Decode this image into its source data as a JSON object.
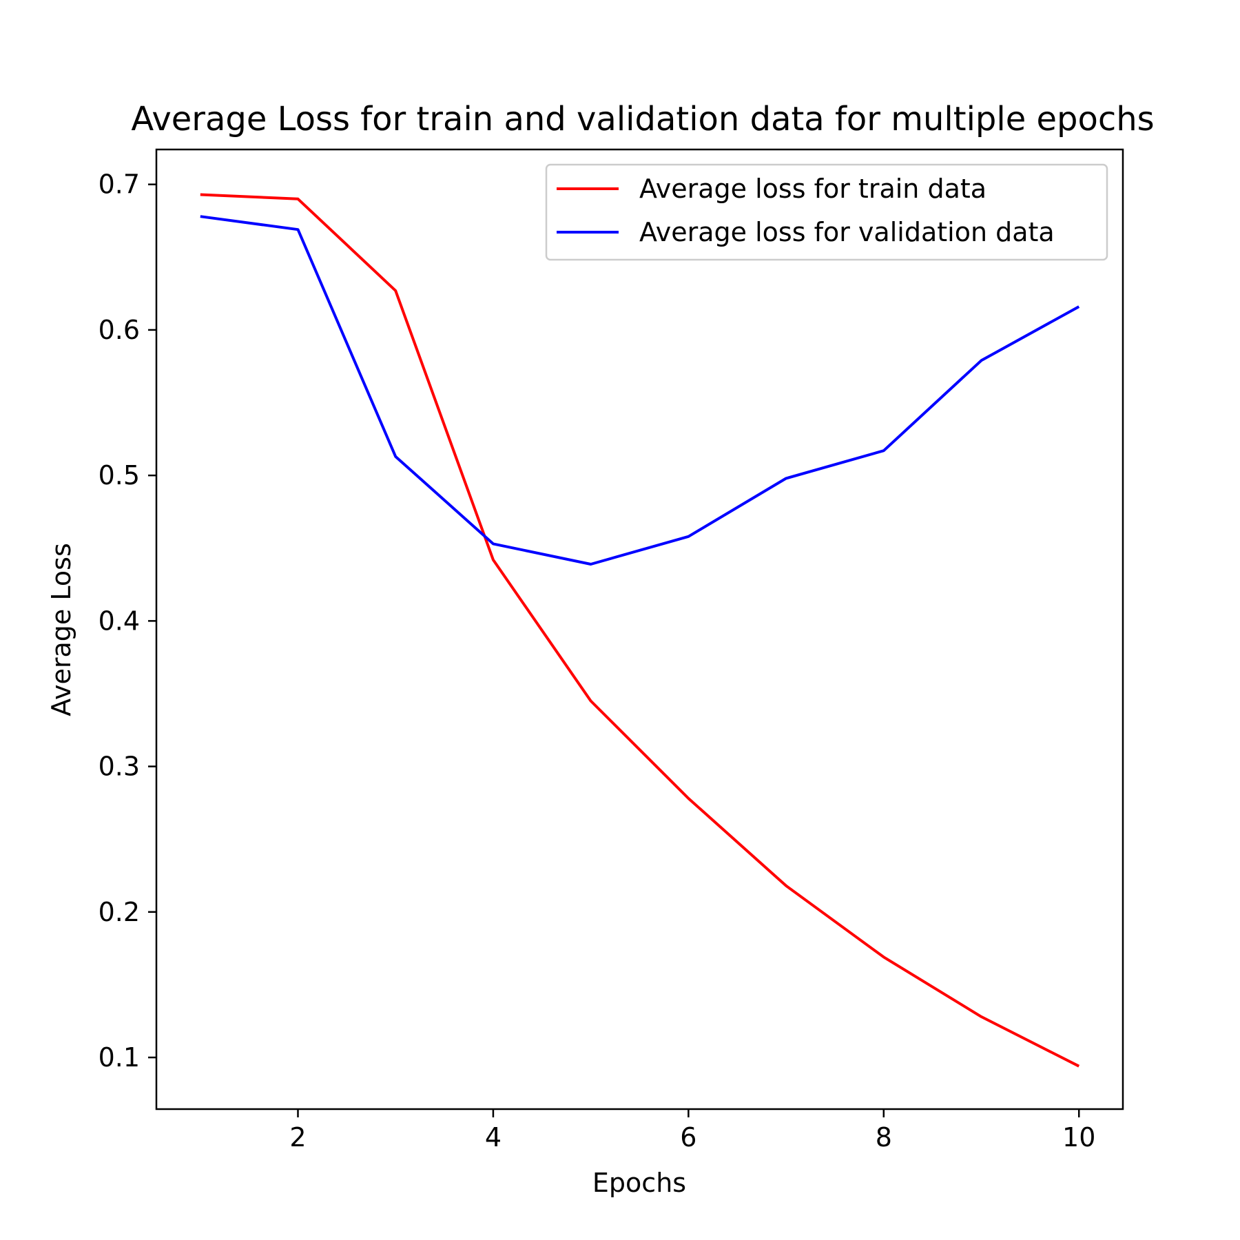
{
  "chart_data": {
    "type": "line",
    "title": "Average Loss for train and validation data for multiple epochs",
    "xlabel": "Epochs",
    "ylabel": "Average Loss",
    "x": [
      1,
      2,
      3,
      4,
      5,
      6,
      7,
      8,
      9,
      10
    ],
    "xlim": [
      0.55,
      10.45
    ],
    "ylim": [
      0.0645,
      0.724
    ],
    "xticks": [
      2,
      4,
      6,
      8,
      10
    ],
    "xtick_labels": [
      "2",
      "4",
      "6",
      "8",
      "10"
    ],
    "yticks": [
      0.1,
      0.2,
      0.3,
      0.4,
      0.5,
      0.6,
      0.7
    ],
    "ytick_labels": [
      "0.1",
      "0.2",
      "0.3",
      "0.4",
      "0.5",
      "0.6",
      "0.7"
    ],
    "grid": false,
    "legend_position": "top-right",
    "series": [
      {
        "name": "Average loss for train data",
        "color": "#ff0000",
        "values": [
          0.693,
          0.69,
          0.627,
          0.442,
          0.345,
          0.278,
          0.218,
          0.169,
          0.128,
          0.094
        ]
      },
      {
        "name": "Average loss for validation data",
        "color": "#0000ff",
        "values": [
          0.678,
          0.669,
          0.513,
          0.453,
          0.439,
          0.458,
          0.498,
          0.517,
          0.579,
          0.616
        ]
      }
    ]
  }
}
